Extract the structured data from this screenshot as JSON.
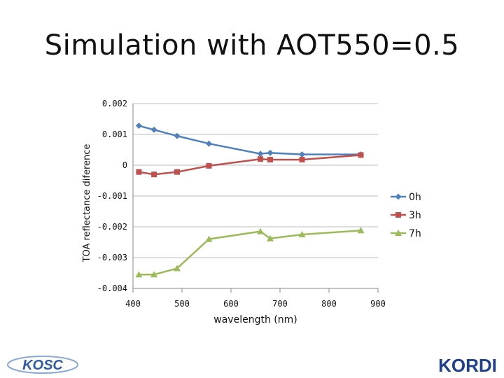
{
  "slide": {
    "title": "Simulation with AOT550=0.5"
  },
  "chart_data": {
    "type": "line",
    "title": "",
    "xlabel": "wavelength (nm)",
    "ylabel": "TOA reflectance diference",
    "xlim": [
      400,
      900
    ],
    "ylim": [
      -0.004,
      0.002
    ],
    "x_ticks": [
      "400",
      "500",
      "600",
      "700",
      "800",
      "900"
    ],
    "y_ticks": [
      "-0.004",
      "-0.003",
      "-0.002",
      "-0.001",
      "0",
      "0.001",
      "0.002"
    ],
    "grid": true,
    "legend_position": "right",
    "x": [
      412,
      443,
      490,
      555,
      660,
      680,
      745,
      865
    ],
    "series": [
      {
        "name": "0h",
        "color": "#4F81BD",
        "marker": "diamond",
        "values": [
          0.00128,
          0.00115,
          0.00095,
          0.0007,
          0.00037,
          0.0004,
          0.00035,
          0.00035
        ]
      },
      {
        "name": "3h",
        "color": "#C0504D",
        "marker": "square",
        "values": [
          -0.00022,
          -0.0003,
          -0.00022,
          -2e-05,
          0.0002,
          0.00018,
          0.00018,
          0.00033
        ]
      },
      {
        "name": "7h",
        "color": "#9BBB59",
        "marker": "triangle",
        "values": [
          -0.00355,
          -0.00355,
          -0.00335,
          -0.0024,
          -0.00215,
          -0.00238,
          -0.00225,
          -0.00212
        ]
      }
    ]
  },
  "logos": {
    "left_text": "KOSC",
    "right_text": "KORDI",
    "left_color": "#2E5AA8",
    "right_color": "#1F3F8F"
  }
}
